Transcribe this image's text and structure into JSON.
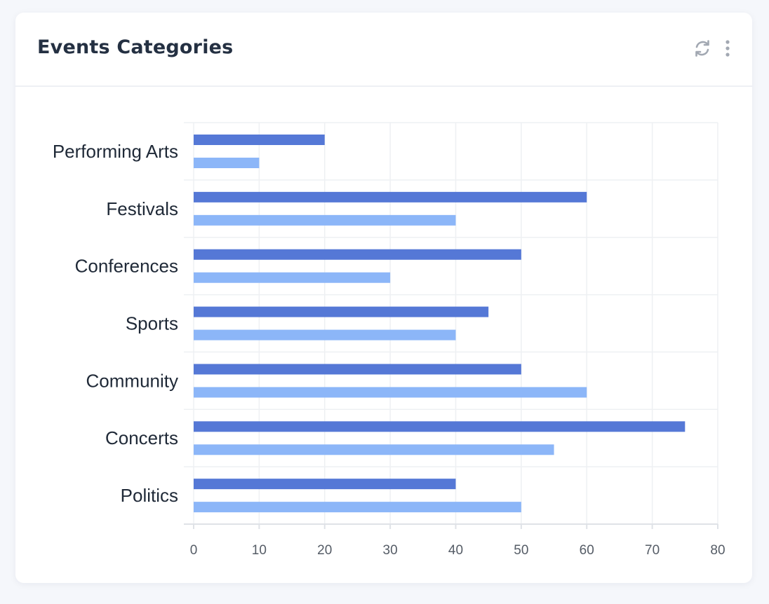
{
  "card": {
    "title": "Events Categories",
    "actions": {
      "refresh_icon": "refresh-icon",
      "more_icon": "more-vertical-icon"
    }
  },
  "chart_data": {
    "type": "bar",
    "orientation": "horizontal",
    "categories": [
      "Performing Arts",
      "Festivals",
      "Conferences",
      "Sports",
      "Community",
      "Concerts",
      "Politics"
    ],
    "series": [
      {
        "color": "#5578d6",
        "values": [
          20,
          60,
          50,
          45,
          50,
          75,
          40
        ]
      },
      {
        "color": "#8cb6f8",
        "values": [
          10,
          40,
          30,
          40,
          60,
          55,
          50
        ]
      }
    ],
    "xlim": [
      0,
      80
    ],
    "xticks": [
      0,
      10,
      20,
      30,
      40,
      50,
      60,
      70,
      80
    ],
    "grid": true,
    "legend": "none"
  }
}
